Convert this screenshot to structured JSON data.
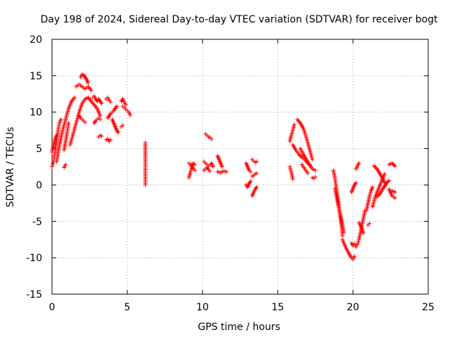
{
  "chart_data": {
    "type": "scatter",
    "title": "Day 198 of 2024, Sidereal Day-to-day VTEC variation (SDTVAR) for receiver bogt",
    "xlabel": "GPS time / hours",
    "ylabel": "SDTVAR / TECUs",
    "xlim": [
      0,
      25
    ],
    "ylim": [
      -15,
      20
    ],
    "xticks": [
      0,
      5,
      10,
      15,
      20,
      25
    ],
    "yticks": [
      -15,
      -10,
      -5,
      0,
      5,
      10,
      15,
      20
    ],
    "xtick_labels": [
      "0",
      "5",
      "10",
      "15",
      "20",
      "25"
    ],
    "ytick_labels": [
      "-15",
      "-10",
      "-5",
      "0",
      "5",
      "10",
      "15",
      "20"
    ],
    "grid": true,
    "marker": "+",
    "color": "#ff0000",
    "segments": [
      {
        "x": [
          0.0,
          0.1,
          0.2,
          0.3,
          0.4,
          0.5,
          0.6
        ],
        "y": [
          2.5,
          3.2,
          4.5,
          6.0,
          7.5,
          8.6,
          9.0
        ]
      },
      {
        "x": [
          0.0,
          0.1,
          0.2,
          0.3
        ],
        "y": [
          4.5,
          5.5,
          6.3,
          6.8
        ]
      },
      {
        "x": [
          0.3,
          0.5,
          0.7,
          0.9,
          1.1,
          1.3,
          1.5
        ],
        "y": [
          3.2,
          5.5,
          7.5,
          9.0,
          10.5,
          11.5,
          12.0
        ]
      },
      {
        "x": [
          0.8,
          0.9,
          1.0,
          1.1
        ],
        "y": [
          4.8,
          6.0,
          7.2,
          8.5
        ]
      },
      {
        "x": [
          0.8,
          0.9
        ],
        "y": [
          2.4,
          2.8
        ]
      },
      {
        "x": [
          1.2,
          1.4,
          1.6,
          1.8,
          2.0,
          2.2,
          2.4
        ],
        "y": [
          5.5,
          7.0,
          8.5,
          10.0,
          11.2,
          11.8,
          12.0
        ]
      },
      {
        "x": [
          1.6,
          1.8,
          2.0,
          2.2,
          2.4,
          2.6
        ],
        "y": [
          13.5,
          13.8,
          13.5,
          13.2,
          13.5,
          13.0
        ]
      },
      {
        "x": [
          1.9,
          2.0,
          2.1,
          2.2,
          2.3,
          2.4
        ],
        "y": [
          14.8,
          15.2,
          15.1,
          14.8,
          14.5,
          14.0
        ]
      },
      {
        "x": [
          1.8,
          1.9,
          2.0,
          2.1,
          2.2
        ],
        "y": [
          9.5,
          9.2,
          9.0,
          8.8,
          8.6
        ]
      },
      {
        "x": [
          2.4,
          2.6,
          2.8,
          3.0,
          3.2
        ],
        "y": [
          12.0,
          11.5,
          11.0,
          10.5,
          9.5
        ]
      },
      {
        "x": [
          2.7,
          2.8,
          2.9,
          3.0,
          3.1,
          3.2,
          3.3
        ],
        "y": [
          12.0,
          12.2,
          11.8,
          11.5,
          11.8,
          11.5,
          11.2
        ]
      },
      {
        "x": [
          2.8,
          2.9,
          3.0,
          3.1,
          3.2
        ],
        "y": [
          8.5,
          8.8,
          9.0,
          9.2,
          9.0
        ]
      },
      {
        "x": [
          3.1,
          3.2,
          3.3
        ],
        "y": [
          6.6,
          6.8,
          6.7
        ]
      },
      {
        "x": [
          3.6,
          3.7,
          3.8,
          3.9
        ],
        "y": [
          6.2,
          6.3,
          6.0,
          6.2
        ]
      },
      {
        "x": [
          3.6,
          3.7,
          3.8,
          3.9
        ],
        "y": [
          11.8,
          12.0,
          11.6,
          11.4
        ]
      },
      {
        "x": [
          3.7,
          3.8,
          3.9,
          4.0,
          4.1,
          4.2,
          4.3
        ],
        "y": [
          9.2,
          9.5,
          9.8,
          10.0,
          10.2,
          10.5,
          10.8
        ]
      },
      {
        "x": [
          4.0,
          4.1,
          4.2,
          4.3,
          4.4
        ],
        "y": [
          9.0,
          8.5,
          8.0,
          7.5,
          7.2
        ]
      },
      {
        "x": [
          4.6,
          4.7,
          4.8,
          4.9
        ],
        "y": [
          11.5,
          11.8,
          11.4,
          11.0
        ]
      },
      {
        "x": [
          4.6,
          4.7
        ],
        "y": [
          8.0,
          8.2
        ]
      },
      {
        "x": [
          4.7,
          4.8,
          4.9,
          5.0,
          5.1,
          5.2
        ],
        "y": [
          10.8,
          10.6,
          10.4,
          10.2,
          10.0,
          9.6
        ]
      },
      {
        "x": [
          6.2,
          6.2,
          6.2,
          6.2
        ],
        "y": [
          5.8,
          4.4,
          3.8,
          0.0
        ]
      },
      {
        "x": [
          9.1,
          9.2,
          9.3,
          9.4,
          9.5
        ],
        "y": [
          1.0,
          1.8,
          2.5,
          3.0,
          2.8
        ]
      },
      {
        "x": [
          9.1,
          9.2,
          9.3,
          9.4,
          9.5
        ],
        "y": [
          3.0,
          2.8,
          2.5,
          2.2,
          2.0
        ]
      },
      {
        "x": [
          10.2,
          10.3,
          10.4,
          10.5,
          10.6
        ],
        "y": [
          7.0,
          6.8,
          6.6,
          6.5,
          6.3
        ]
      },
      {
        "x": [
          10.1,
          10.2,
          10.3,
          10.4,
          10.5,
          10.6,
          10.7
        ],
        "y": [
          3.2,
          3.0,
          2.8,
          2.6,
          2.8,
          3.0,
          2.5
        ]
      },
      {
        "x": [
          10.1,
          10.2,
          10.3,
          10.4,
          10.5
        ],
        "y": [
          2.0,
          2.2,
          2.4,
          2.1,
          1.9
        ]
      },
      {
        "x": [
          11.0,
          11.1,
          11.2,
          11.3
        ],
        "y": [
          4.0,
          3.5,
          3.0,
          2.5
        ]
      },
      {
        "x": [
          11.0,
          11.2,
          11.4,
          11.6
        ],
        "y": [
          1.8,
          1.7,
          1.9,
          1.8
        ]
      },
      {
        "x": [
          12.9,
          13.0,
          13.1,
          13.2
        ],
        "y": [
          3.0,
          2.5,
          2.0,
          1.8
        ]
      },
      {
        "x": [
          12.9,
          13.0,
          13.1,
          13.2
        ],
        "y": [
          0.0,
          -0.3,
          0.2,
          0.5
        ]
      },
      {
        "x": [
          13.3,
          13.4,
          13.5,
          13.6
        ],
        "y": [
          3.5,
          3.3,
          3.1,
          3.2
        ]
      },
      {
        "x": [
          13.3,
          13.4,
          13.5,
          13.6
        ],
        "y": [
          1.2,
          1.3,
          1.5,
          1.6
        ]
      },
      {
        "x": [
          13.3,
          13.4,
          13.5,
          13.6
        ],
        "y": [
          -1.5,
          -1.0,
          -0.6,
          -0.3
        ]
      },
      {
        "x": [
          15.8,
          15.9,
          16.0
        ],
        "y": [
          2.5,
          1.8,
          0.8
        ]
      },
      {
        "x": [
          15.8,
          15.9,
          16.0,
          16.1
        ],
        "y": [
          6.0,
          6.8,
          7.5,
          8.3
        ]
      },
      {
        "x": [
          16.0,
          16.2,
          16.4,
          16.6,
          16.8,
          17.0,
          17.2
        ],
        "y": [
          5.5,
          4.8,
          4.2,
          3.8,
          3.5,
          3.0,
          2.6
        ]
      },
      {
        "x": [
          16.3,
          16.5,
          16.7,
          16.9,
          17.1,
          17.3
        ],
        "y": [
          9.0,
          8.5,
          7.8,
          6.5,
          5.0,
          3.5
        ]
      },
      {
        "x": [
          16.5,
          16.7,
          16.9,
          17.1,
          17.3,
          17.5
        ],
        "y": [
          5.0,
          4.2,
          3.5,
          2.8,
          2.2,
          2.0
        ]
      },
      {
        "x": [
          16.6,
          16.8,
          17.0
        ],
        "y": [
          2.8,
          2.2,
          1.6
        ]
      },
      {
        "x": [
          17.3,
          17.4,
          17.5
        ],
        "y": [
          1.0,
          0.9,
          1.1
        ]
      },
      {
        "x": [
          18.7,
          18.8,
          18.9,
          19.0,
          19.1,
          19.2,
          19.3
        ],
        "y": [
          2.0,
          1.0,
          -0.5,
          -2.0,
          -3.5,
          -5.0,
          -7.0
        ]
      },
      {
        "x": [
          18.8,
          18.9,
          19.0,
          19.1,
          19.2,
          19.3,
          19.4
        ],
        "y": [
          -0.5,
          -1.5,
          -2.5,
          -3.5,
          -4.5,
          -5.5,
          -6.5
        ]
      },
      {
        "x": [
          19.3,
          19.5,
          19.7,
          19.9,
          20.0,
          20.1
        ],
        "y": [
          -7.5,
          -8.5,
          -9.3,
          -10.0,
          -10.2,
          -9.8
        ]
      },
      {
        "x": [
          19.9,
          20.0,
          20.1,
          20.2
        ],
        "y": [
          -8.0,
          -8.3,
          -8.1,
          -8.5
        ]
      },
      {
        "x": [
          19.9,
          20.0,
          20.1,
          20.2
        ],
        "y": [
          -1.0,
          -0.5,
          0.0,
          0.3
        ]
      },
      {
        "x": [
          20.2,
          20.3,
          20.4
        ],
        "y": [
          2.2,
          2.6,
          3.0
        ]
      },
      {
        "x": [
          20.3,
          20.4,
          20.5,
          20.6,
          20.7,
          20.8
        ],
        "y": [
          -8.2,
          -7.5,
          -6.5,
          -5.5,
          -4.5,
          -3.5
        ]
      },
      {
        "x": [
          20.4,
          20.5,
          20.6,
          20.7
        ],
        "y": [
          -5.2,
          -5.6,
          -6.0,
          -6.6
        ]
      },
      {
        "x": [
          20.9,
          21.0,
          21.1,
          21.2,
          21.3
        ],
        "y": [
          -3.5,
          -2.5,
          -1.5,
          -0.8,
          -0.3
        ]
      },
      {
        "x": [
          21.0,
          21.1
        ],
        "y": [
          -5.5,
          -5.3
        ]
      },
      {
        "x": [
          21.3,
          21.5,
          21.7,
          21.9,
          22.1
        ],
        "y": [
          -3.0,
          -1.5,
          -0.5,
          0.5,
          1.5
        ]
      },
      {
        "x": [
          21.4,
          21.6,
          21.8,
          22.0,
          22.2
        ],
        "y": [
          2.6,
          2.2,
          1.5,
          0.8,
          0.0
        ]
      },
      {
        "x": [
          21.6,
          21.8,
          22.0,
          22.2,
          22.4
        ],
        "y": [
          -1.6,
          -1.2,
          -0.5,
          0.2,
          0.6
        ]
      },
      {
        "x": [
          22.4,
          22.6,
          22.8
        ],
        "y": [
          2.8,
          3.0,
          2.6
        ]
      },
      {
        "x": [
          22.4,
          22.6,
          22.8
        ],
        "y": [
          -0.6,
          -1.5,
          -1.8
        ]
      },
      {
        "x": [
          22.6,
          22.8
        ],
        "y": [
          -0.8,
          -1.0
        ]
      }
    ]
  }
}
